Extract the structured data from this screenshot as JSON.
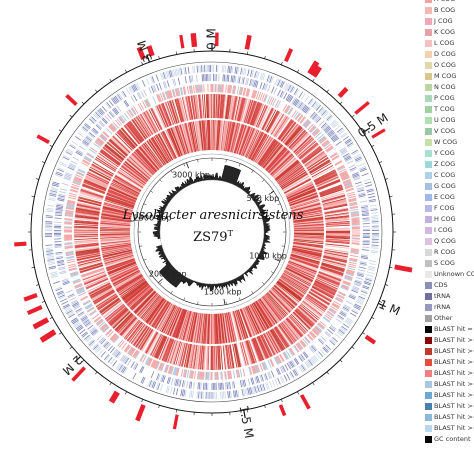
{
  "title": "Lysobacter aresnicirsistens",
  "strain_name": "ZS79",
  "strain_superscript": "T",
  "outer_ticks": [
    {
      "label": "0 M",
      "fraction": 0
    },
    {
      "label": "0.5 M",
      "fraction": 0.1573
    },
    {
      "label": "1 M",
      "fraction": 0.3146
    },
    {
      "label": "1.5 M",
      "fraction": 0.4719
    },
    {
      "label": "2 M",
      "fraction": 0.6293
    },
    {
      "label": "3 M",
      "fraction": 0.9439
    }
  ],
  "inner_ticks": [
    {
      "label": "500 kbp",
      "fraction": 0.1573
    },
    {
      "label": "1000 kbp",
      "fraction": 0.3146
    },
    {
      "label": "1500 kbp",
      "fraction": 0.4719
    },
    {
      "label": "2000 kbp",
      "fraction": 0.6293
    },
    {
      "label": "2500 kbp",
      "fraction": 0.7866
    },
    {
      "label": "3000 kbp",
      "fraction": 0.9439
    }
  ],
  "legend": [
    {
      "label": "A COG",
      "color": "#f2a0a0"
    },
    {
      "label": "B COG",
      "color": "#f4b8b0"
    },
    {
      "label": "J COG",
      "color": "#f0a8b8"
    },
    {
      "label": "K COG",
      "color": "#e8a0a8"
    },
    {
      "label": "L COG",
      "color": "#f5c0c0"
    },
    {
      "label": "D COG",
      "color": "#f5d0b0"
    },
    {
      "label": "O COG",
      "color": "#e0d8a8"
    },
    {
      "label": "M COG",
      "color": "#d8c890"
    },
    {
      "label": "N COG",
      "color": "#b8d8a0"
    },
    {
      "label": "P COG",
      "color": "#a8d8b8"
    },
    {
      "label": "T COG",
      "color": "#a0d0a0"
    },
    {
      "label": "U COG",
      "color": "#b0e0b0"
    },
    {
      "label": "V COG",
      "color": "#98c8a8"
    },
    {
      "label": "W COG",
      "color": "#c8e0a8"
    },
    {
      "label": "Y COG",
      "color": "#a8e0d0"
    },
    {
      "label": "Z COG",
      "color": "#a0d8d8"
    },
    {
      "label": "C COG",
      "color": "#b0d0e8"
    },
    {
      "label": "G COG",
      "color": "#a8c0e0"
    },
    {
      "label": "E COG",
      "color": "#a0b8e8"
    },
    {
      "label": "F COG",
      "color": "#b8b8e8"
    },
    {
      "label": "H COG",
      "color": "#c0b0e0"
    },
    {
      "label": "I COG",
      "color": "#d0b8e0"
    },
    {
      "label": "Q COG",
      "color": "#e0c0e0"
    },
    {
      "label": "R COG",
      "color": "#d8d8d8"
    },
    {
      "label": "S COG",
      "color": "#c0c0c0"
    },
    {
      "label": "Unknown COG",
      "color": "#e8e8e8"
    },
    {
      "label": "CDS",
      "color": "#8890b8"
    },
    {
      "label": "tRNA",
      "color": "#7070a0"
    },
    {
      "label": "rRNA",
      "color": "#9898c0"
    },
    {
      "label": "Other",
      "color": "#a0a0a0"
    },
    {
      "label": "BLAST hit = 100",
      "color": "#000000"
    },
    {
      "label": "BLAST hit >=",
      "color": "#8b0000"
    },
    {
      "label": "BLAST hit >=",
      "color": "#c0392b"
    },
    {
      "label": "BLAST hit >=",
      "color": "#e74c3c"
    },
    {
      "label": "BLAST hit >=",
      "color": "#f08080"
    },
    {
      "label": "BLAST hit >=",
      "color": "#a8c8e0"
    },
    {
      "label": "BLAST hit >=",
      "color": "#6fa8d0"
    },
    {
      "label": "BLAST hit >=",
      "color": "#4a80b0"
    },
    {
      "label": "BLAST hit >=",
      "color": "#8fb8d8"
    },
    {
      "label": "BLAST hit >=",
      "color": "#b8d8f0"
    },
    {
      "label": "GC content",
      "color": "#000000"
    }
  ],
  "colors": {
    "blast_dark": "#c0392b",
    "blast_mid": "#e05050",
    "blast_light": "#f4a0a0",
    "feature_red": "#e8202e",
    "cds_blue": "#7880b8",
    "gc": "#000000"
  }
}
